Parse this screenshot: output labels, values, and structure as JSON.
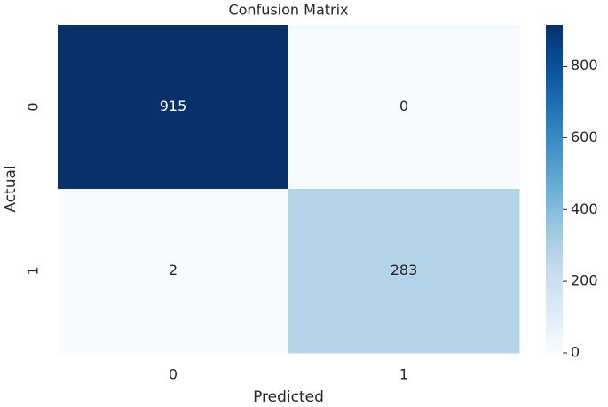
{
  "chart_data": {
    "type": "heatmap",
    "title": "Confusion Matrix",
    "x_label": "Predicted",
    "y_label": "Actual",
    "x_categories": [
      "0",
      "1"
    ],
    "y_categories": [
      "0",
      "1"
    ],
    "values": [
      [
        915,
        0
      ],
      [
        2,
        283
      ]
    ],
    "cmap": [
      "#f7fbff",
      "#deebf7",
      "#c6dbef",
      "#9ecae1",
      "#6baed6",
      "#4292c6",
      "#2171b5",
      "#08519c",
      "#08306b"
    ],
    "clim": [
      0,
      915
    ],
    "cticks": [
      0,
      200,
      400,
      600,
      800
    ]
  }
}
